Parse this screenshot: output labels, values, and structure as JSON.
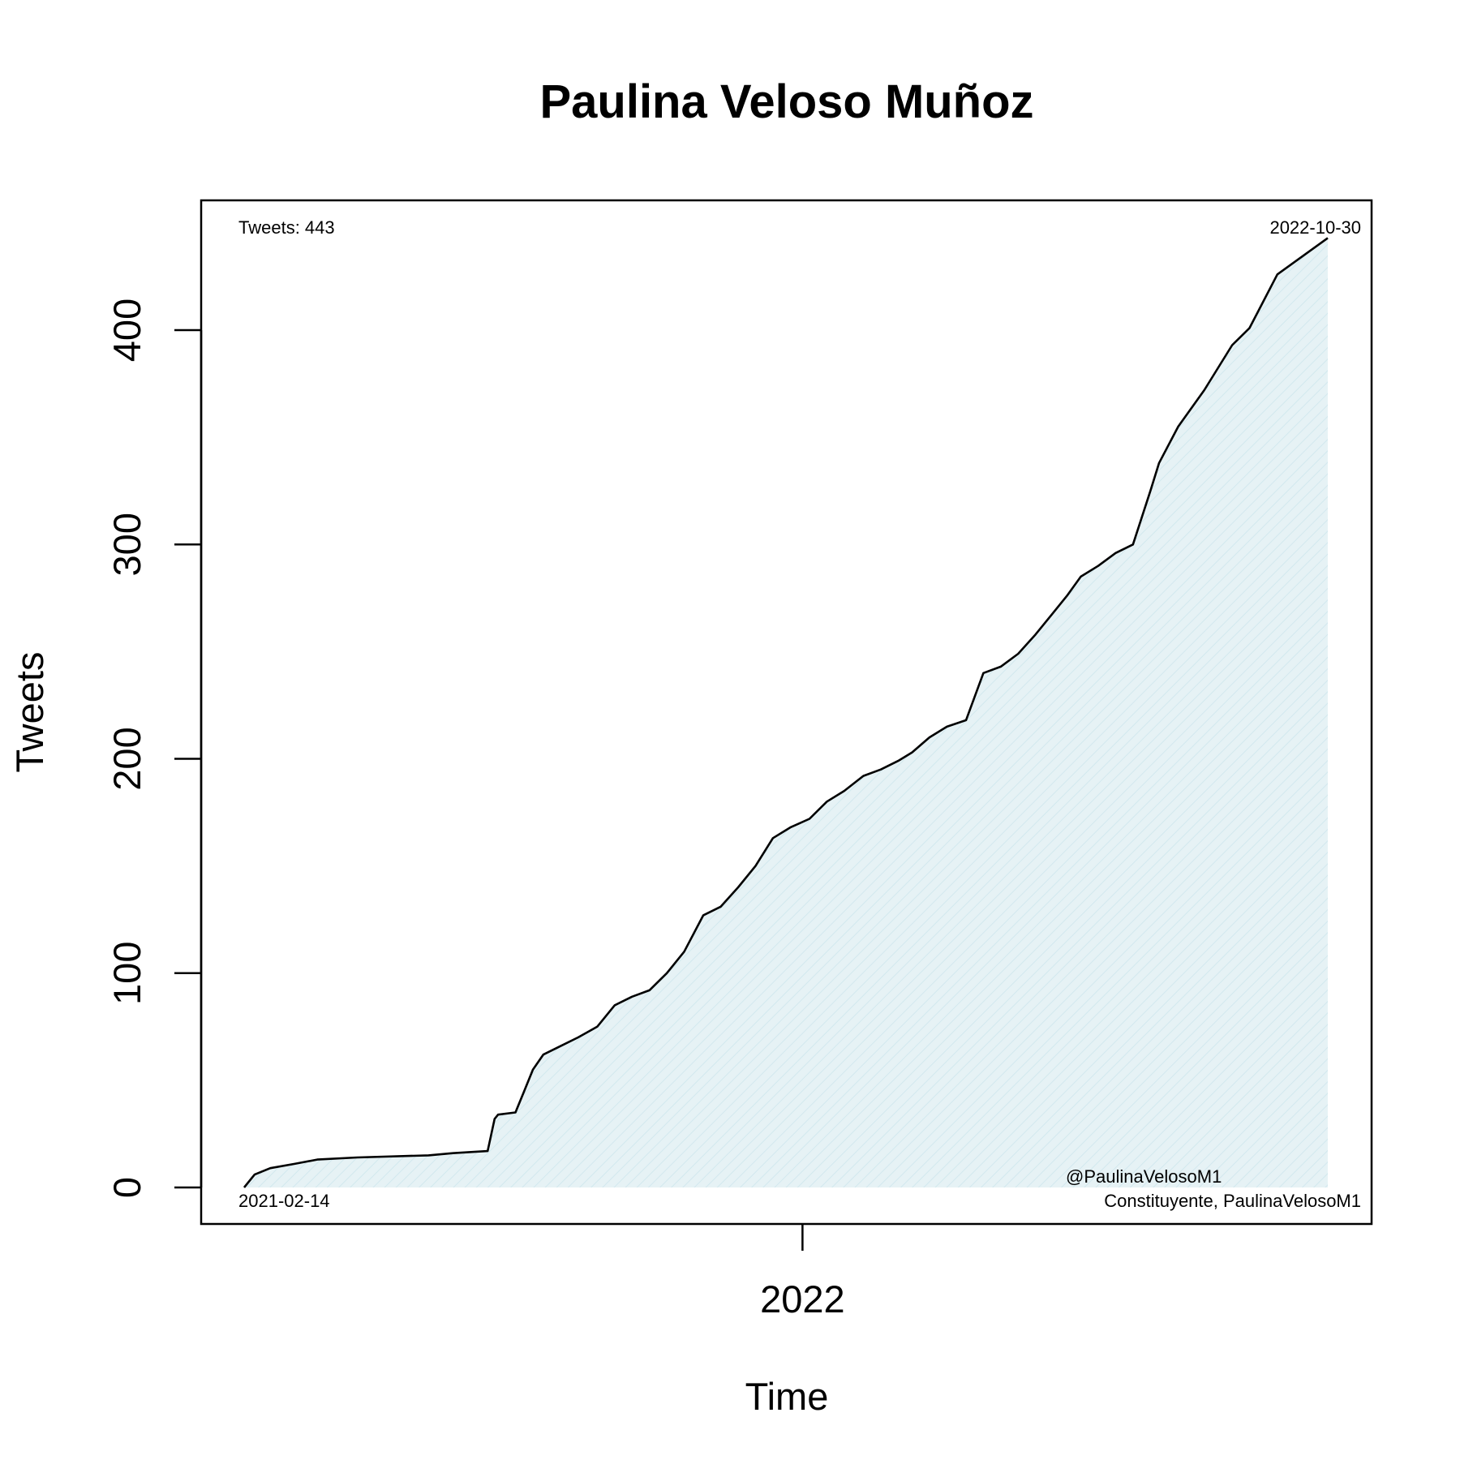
{
  "chart_data": {
    "type": "area",
    "title": "Paulina Veloso Muñoz",
    "xlabel": "Time",
    "ylabel": "Tweets",
    "xlim": [
      "2021-02-14",
      "2022-10-30"
    ],
    "ylim": [
      0,
      443
    ],
    "x_ticks": [
      {
        "date": "2022-01-01",
        "label": "2022"
      }
    ],
    "y_ticks": [
      0,
      100,
      200,
      300,
      400
    ],
    "grid": false,
    "colors": {
      "line": "#000000",
      "fill": "#e6f2f5",
      "hatch": "#d2e8ee"
    },
    "annotations": {
      "top_left": "Tweets: 443",
      "top_right": "2022-10-30",
      "bottom_left": "2021-02-14",
      "bottom_right_line1": "@PaulinaVelosoM1",
      "bottom_right_line2": "Constituyente, PaulinaVelosoM1"
    },
    "series": [
      {
        "x": [
          "2021-02-14",
          "2021-02-20",
          "2021-03-01",
          "2021-03-15",
          "2021-03-28",
          "2021-04-20",
          "2021-05-31",
          "2021-06-14",
          "2021-07-04",
          "2021-07-08",
          "2021-07-10",
          "2021-07-20",
          "2021-07-25",
          "2021-07-30",
          "2021-08-05",
          "2021-08-15",
          "2021-08-25",
          "2021-09-05",
          "2021-09-15",
          "2021-09-25",
          "2021-10-05",
          "2021-10-15",
          "2021-10-25",
          "2021-11-05",
          "2021-11-15",
          "2021-11-25",
          "2021-12-05",
          "2021-12-15",
          "2021-12-25",
          "2022-01-05",
          "2022-01-15",
          "2022-01-25",
          "2022-02-05",
          "2022-02-15",
          "2022-02-25",
          "2022-03-05",
          "2022-03-15",
          "2022-03-25",
          "2022-04-05",
          "2022-04-15",
          "2022-04-25",
          "2022-05-05",
          "2022-05-15",
          "2022-05-25",
          "2022-06-02",
          "2022-06-10",
          "2022-06-20",
          "2022-06-30",
          "2022-07-10",
          "2022-07-20",
          "2022-07-25",
          "2022-08-05",
          "2022-08-20",
          "2022-09-05",
          "2022-09-15",
          "2022-10-01",
          "2022-10-30"
        ],
        "y": [
          0,
          6,
          9,
          11,
          13,
          14,
          15,
          16,
          17,
          32,
          34,
          35,
          45,
          55,
          62,
          66,
          70,
          75,
          85,
          89,
          92,
          100,
          110,
          127,
          131,
          140,
          150,
          163,
          168,
          172,
          180,
          185,
          192,
          195,
          199,
          203,
          210,
          215,
          218,
          240,
          243,
          249,
          258,
          268,
          276,
          285,
          290,
          296,
          300,
          325,
          338,
          355,
          372,
          393,
          401,
          426,
          443
        ]
      }
    ]
  }
}
